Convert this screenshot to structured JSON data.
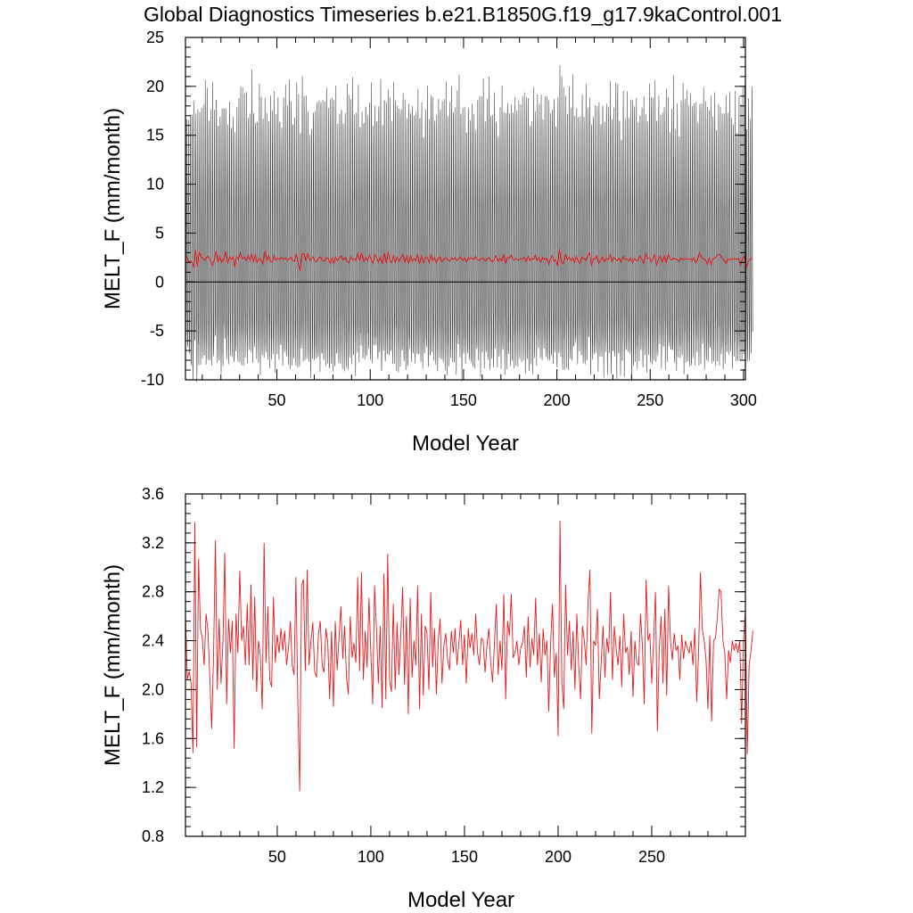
{
  "figure": {
    "title": "Global Diagnostics Timeseries b.e21.B1850G.f19_g17.9kaControl.001"
  },
  "colors": {
    "monthly_series": "#000000",
    "annual_series": "#e41a1c",
    "zero_line": "#000000"
  },
  "chart_data": [
    {
      "type": "line",
      "panel": "monthly",
      "xlabel": "Model Year",
      "ylabel": "MELT_F (mm/month)",
      "xlim": [
        1,
        301
      ],
      "ylim": [
        -10,
        25
      ],
      "xticks": [
        50,
        100,
        150,
        200,
        250,
        300
      ],
      "xtick_labels": [
        "50",
        "100",
        "150",
        "200",
        "250",
        "300"
      ],
      "yticks": [
        -10,
        -5,
        0,
        5,
        10,
        15,
        20,
        25
      ],
      "ytick_labels": [
        "-10",
        "-5",
        "0",
        "5",
        "10",
        "15",
        "20",
        "25"
      ],
      "reference_line": 0,
      "series": [
        {
          "kind": "monthly",
          "color_key": "monthly_series",
          "months_per_year": 12,
          "monthly_climatology": [
            -6.8,
            -8.0,
            -5.5,
            0.8,
            5.5,
            9.5,
            15.5,
            18.0,
            9.0,
            2.8,
            -2.0,
            -4.6
          ],
          "interannual_spread": 1.2
        },
        {
          "kind": "annual_mean",
          "color_key": "annual_series",
          "values_from": "annual"
        }
      ]
    },
    {
      "type": "line",
      "panel": "annual",
      "xlabel": "Model Year",
      "ylabel": "MELT_F (mm/month)",
      "xlim": [
        1,
        300
      ],
      "ylim": [
        0.8,
        3.6
      ],
      "xticks": [
        50,
        100,
        150,
        200,
        250
      ],
      "xtick_labels": [
        "50",
        "100",
        "150",
        "200",
        "250"
      ],
      "yticks": [
        0.8,
        1.2,
        1.6,
        2.0,
        2.4,
        2.8,
        3.2,
        3.6
      ],
      "ytick_labels": [
        "0.8",
        "1.2",
        "1.6",
        "2.0",
        "2.4",
        "2.8",
        "3.2",
        "3.6"
      ],
      "series": [
        {
          "kind": "annual_mean",
          "color_key": "annual_series",
          "x_start": 1,
          "values": [
            2.62,
            2.08,
            2.15,
            2.05,
            1.48,
            3.37,
            1.53,
            3.07,
            2.5,
            2.42,
            2.2,
            2.62,
            2.48,
            2.1,
            1.68,
            2.28,
            3.22,
            2.0,
            2.58,
            2.05,
            2.38,
            3.12,
            1.88,
            2.58,
            2.3,
            2.56,
            1.52,
            2.62,
            2.3,
            2.97,
            2.4,
            2.52,
            2.2,
            2.7,
            2.2,
            2.86,
            2.08,
            2.76,
            1.98,
            2.4,
            2.28,
            1.84,
            3.2,
            2.22,
            2.68,
            2.08,
            2.02,
            2.76,
            2.22,
            2.45,
            2.3,
            2.5,
            2.32,
            2.48,
            2.2,
            2.34,
            2.56,
            2.2,
            2.12,
            2.92,
            1.9,
            1.17,
            2.85,
            2.9,
            2.15,
            2.98,
            2.2,
            2.4,
            2.55,
            2.15,
            2.1,
            2.45,
            2.56,
            2.2,
            2.14,
            2.5,
            2.38,
            1.92,
            2.48,
            1.86,
            2.56,
            2.16,
            2.42,
            2.68,
            2.25,
            2.52,
            2.1,
            1.96,
            2.6,
            2.26,
            2.38,
            2.22,
            2.92,
            2.15,
            2.96,
            2.08,
            2.48,
            2.18,
            2.75,
            2.3,
            1.88,
            2.85,
            2.5,
            2.05,
            2.52,
            1.85,
            2.95,
            1.92,
            3.11,
            2.08,
            1.98,
            2.7,
            2.0,
            2.55,
            2.12,
            2.45,
            2.84,
            2.04,
            2.6,
            1.8,
            2.75,
            2.1,
            2.4,
            2.2,
            2.85,
            1.84,
            2.62,
            1.95,
            2.52,
            2.46,
            2.0,
            2.8,
            2.18,
            2.5,
            1.96,
            2.4,
            2.58,
            2.05,
            2.36,
            2.46,
            2.24,
            2.16,
            2.48,
            2.3,
            2.5,
            2.2,
            2.38,
            2.57,
            2.2,
            2.45,
            2.05,
            2.5,
            2.34,
            2.46,
            2.28,
            2.62,
            2.3,
            2.2,
            2.42,
            2.4,
            2.14,
            2.36,
            2.5,
            2.22,
            2.06,
            2.38,
            2.7,
            2.12,
            2.4,
            2.16,
            2.78,
            1.92,
            2.56,
            2.44,
            2.78,
            2.26,
            2.3,
            2.4,
            2.2,
            2.34,
            2.38,
            2.52,
            2.1,
            2.6,
            2.18,
            2.42,
            2.28,
            2.75,
            2.2,
            2.46,
            2.06,
            2.5,
            2.28,
            2.4,
            1.82,
            2.38,
            2.7,
            2.1,
            2.3,
            1.62,
            3.38,
            2.05,
            1.84,
            2.86,
            2.28,
            2.56,
            2.16,
            2.48,
            2.0,
            2.62,
            2.2,
            1.92,
            2.52,
            2.4,
            2.2,
            2.72,
            2.98,
            1.64,
            2.4,
            2.36,
            2.66,
            1.92,
            2.22,
            2.52,
            2.1,
            2.42,
            2.3,
            2.8,
            2.08,
            2.52,
            2.34,
            2.2,
            2.44,
            2.02,
            2.62,
            2.3,
            2.35,
            2.12,
            2.48,
            1.94,
            2.4,
            2.22,
            2.2,
            2.62,
            2.36,
            1.88,
            2.9,
            2.4,
            2.46,
            2.05,
            2.4,
            2.8,
            1.66,
            2.32,
            2.6,
            2.05,
            2.66,
            1.95,
            2.85,
            2.4,
            2.24,
            2.46,
            2.32,
            2.36,
            2.08,
            2.45,
            2.25,
            2.4,
            2.34,
            2.3,
            2.4,
            2.2,
            2.5,
            1.9,
            2.3,
            2.96,
            2.5,
            2.4,
            2.24,
            1.84,
            2.44,
            1.74,
            2.4,
            2.42,
            2.58,
            2.82,
            2.8,
            2.4,
            2.3,
            1.92,
            2.32,
            2.22,
            2.4,
            2.32,
            2.38,
            2.3,
            2.4,
            1.72,
            2.4,
            2.65,
            1.47,
            2.2,
            2.32,
            2.48
          ]
        }
      ]
    }
  ]
}
